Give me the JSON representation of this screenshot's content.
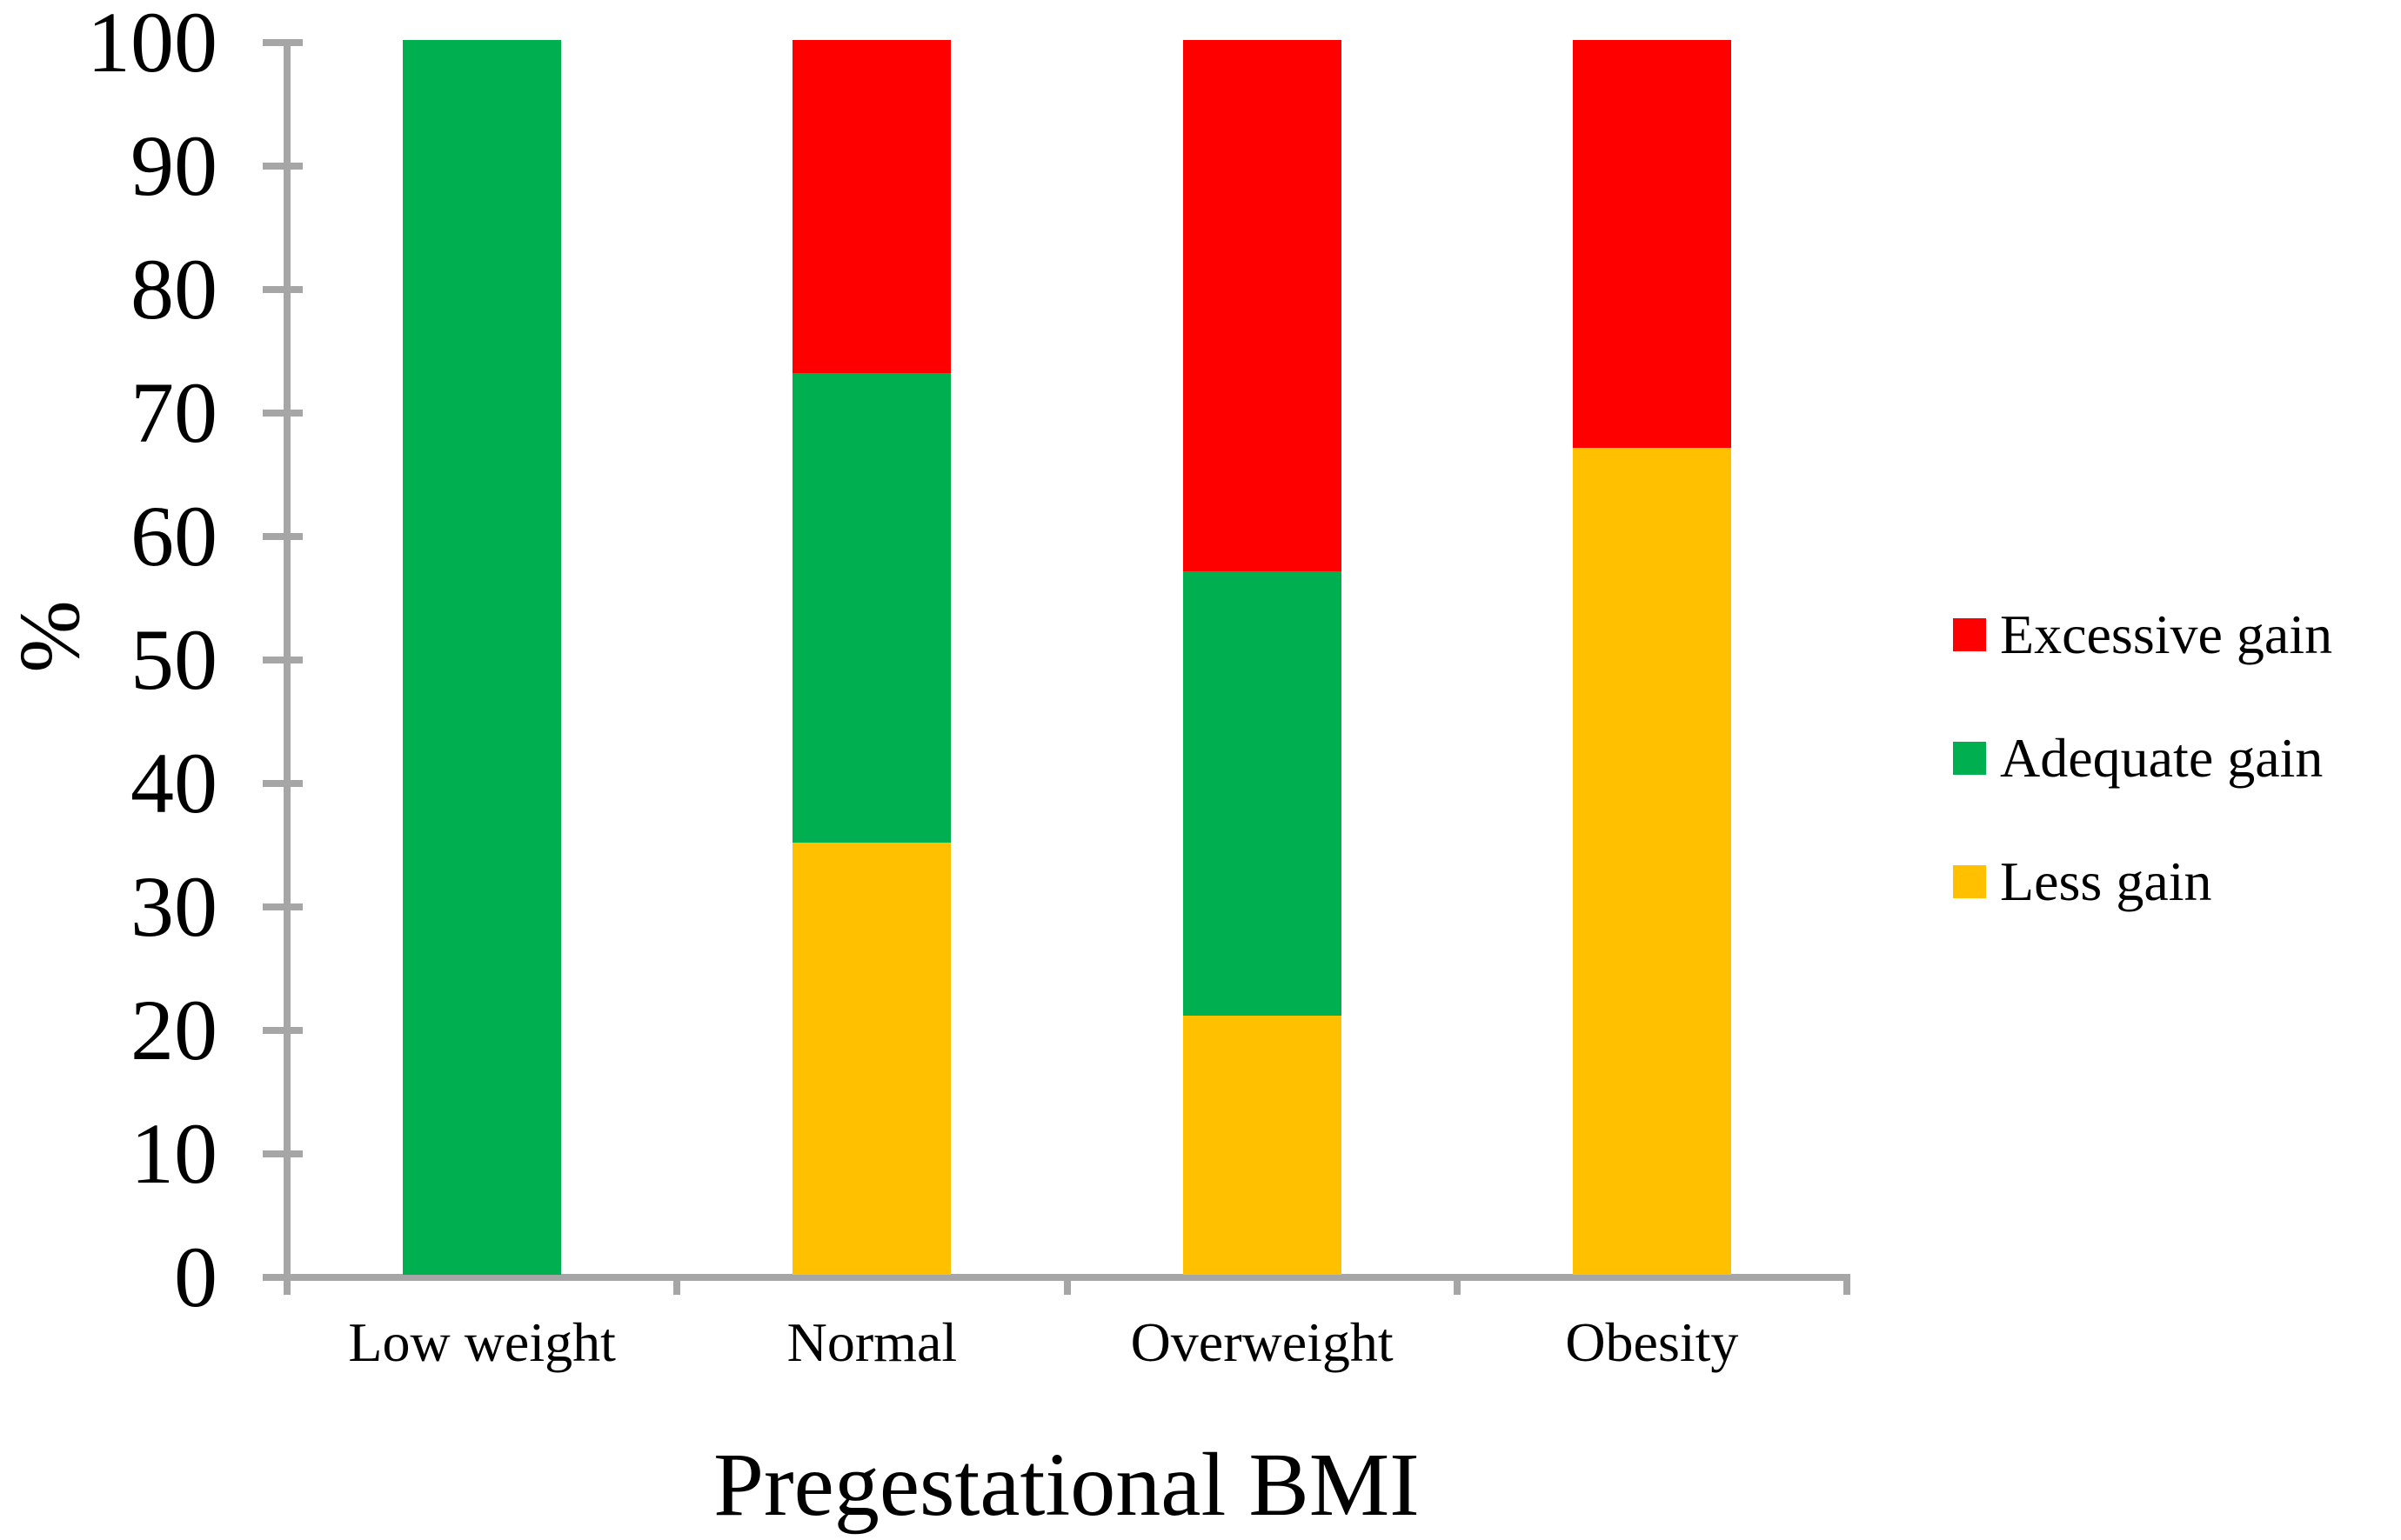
{
  "figure": {
    "background": "#FFFFFF",
    "axis_color": "#A6A6A6",
    "text_color": "#000000"
  },
  "chart_data": {
    "type": "bar",
    "stacked": true,
    "title": "",
    "xlabel": "Pregestational BMI",
    "ylabel": "%",
    "ylim": [
      0,
      100
    ],
    "yticks": [
      0,
      10,
      20,
      30,
      40,
      50,
      60,
      70,
      80,
      90,
      100
    ],
    "grid": false,
    "legend_position": "right",
    "categories": [
      "Low weight",
      "Normal",
      "Overweight",
      "Obesity"
    ],
    "series": [
      {
        "name": "Less gain",
        "color": "#FFC000",
        "values": [
          0,
          35,
          21,
          67
        ]
      },
      {
        "name": "Adequate gain",
        "color": "#00B050",
        "values": [
          100,
          38,
          36,
          0
        ]
      },
      {
        "name": "Excessive gain",
        "color": "#FF0000",
        "values": [
          0,
          27,
          43,
          33
        ]
      }
    ],
    "legend": [
      {
        "label": "Excessive gain",
        "color": "#FF0000"
      },
      {
        "label": "Adequate gain",
        "color": "#00B050"
      },
      {
        "label": "Less gain",
        "color": "#FFC000"
      }
    ]
  }
}
